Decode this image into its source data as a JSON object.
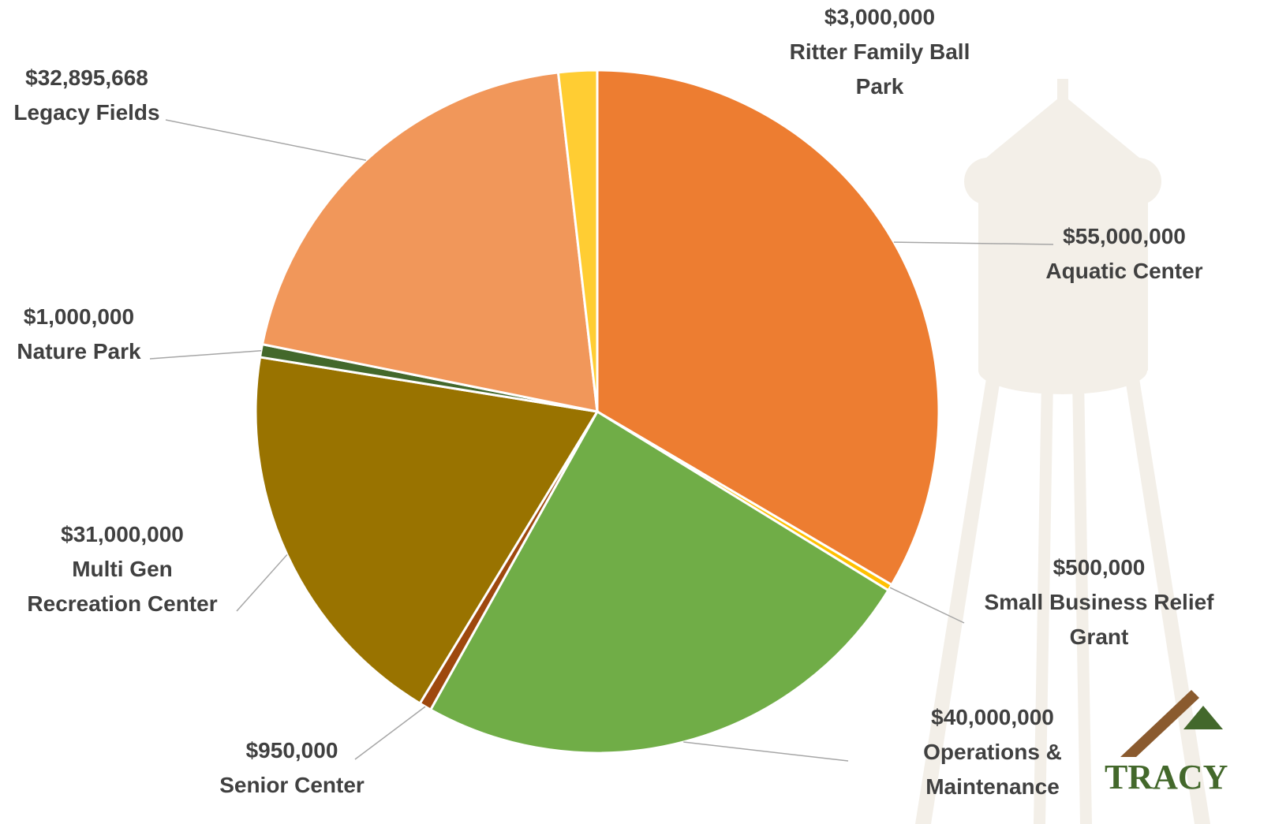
{
  "chart_data": {
    "type": "pie",
    "categories": [
      "Aquatic Center",
      "Small Business Relief Grant",
      "Operations & Maintenance",
      "Senior Center",
      "Multi Gen Recreation Center",
      "Nature Park",
      "Legacy Fields",
      "Ritter Family Ball Park"
    ],
    "values": [
      55000000,
      500000,
      40000000,
      950000,
      31000000,
      1000000,
      32895668,
      3000000
    ],
    "value_labels": [
      "$55,000,000",
      "$500,000",
      "$40,000,000",
      "$950,000",
      "$31,000,000",
      "$1,000,000",
      "$32,895,668",
      "$3,000,000"
    ],
    "colors": [
      "#ED7D31",
      "#FFC000",
      "#70AD47",
      "#9E480E",
      "#997300",
      "#43682B",
      "#F1975A",
      "#FFCD33"
    ]
  },
  "logo_text": "TRACY"
}
